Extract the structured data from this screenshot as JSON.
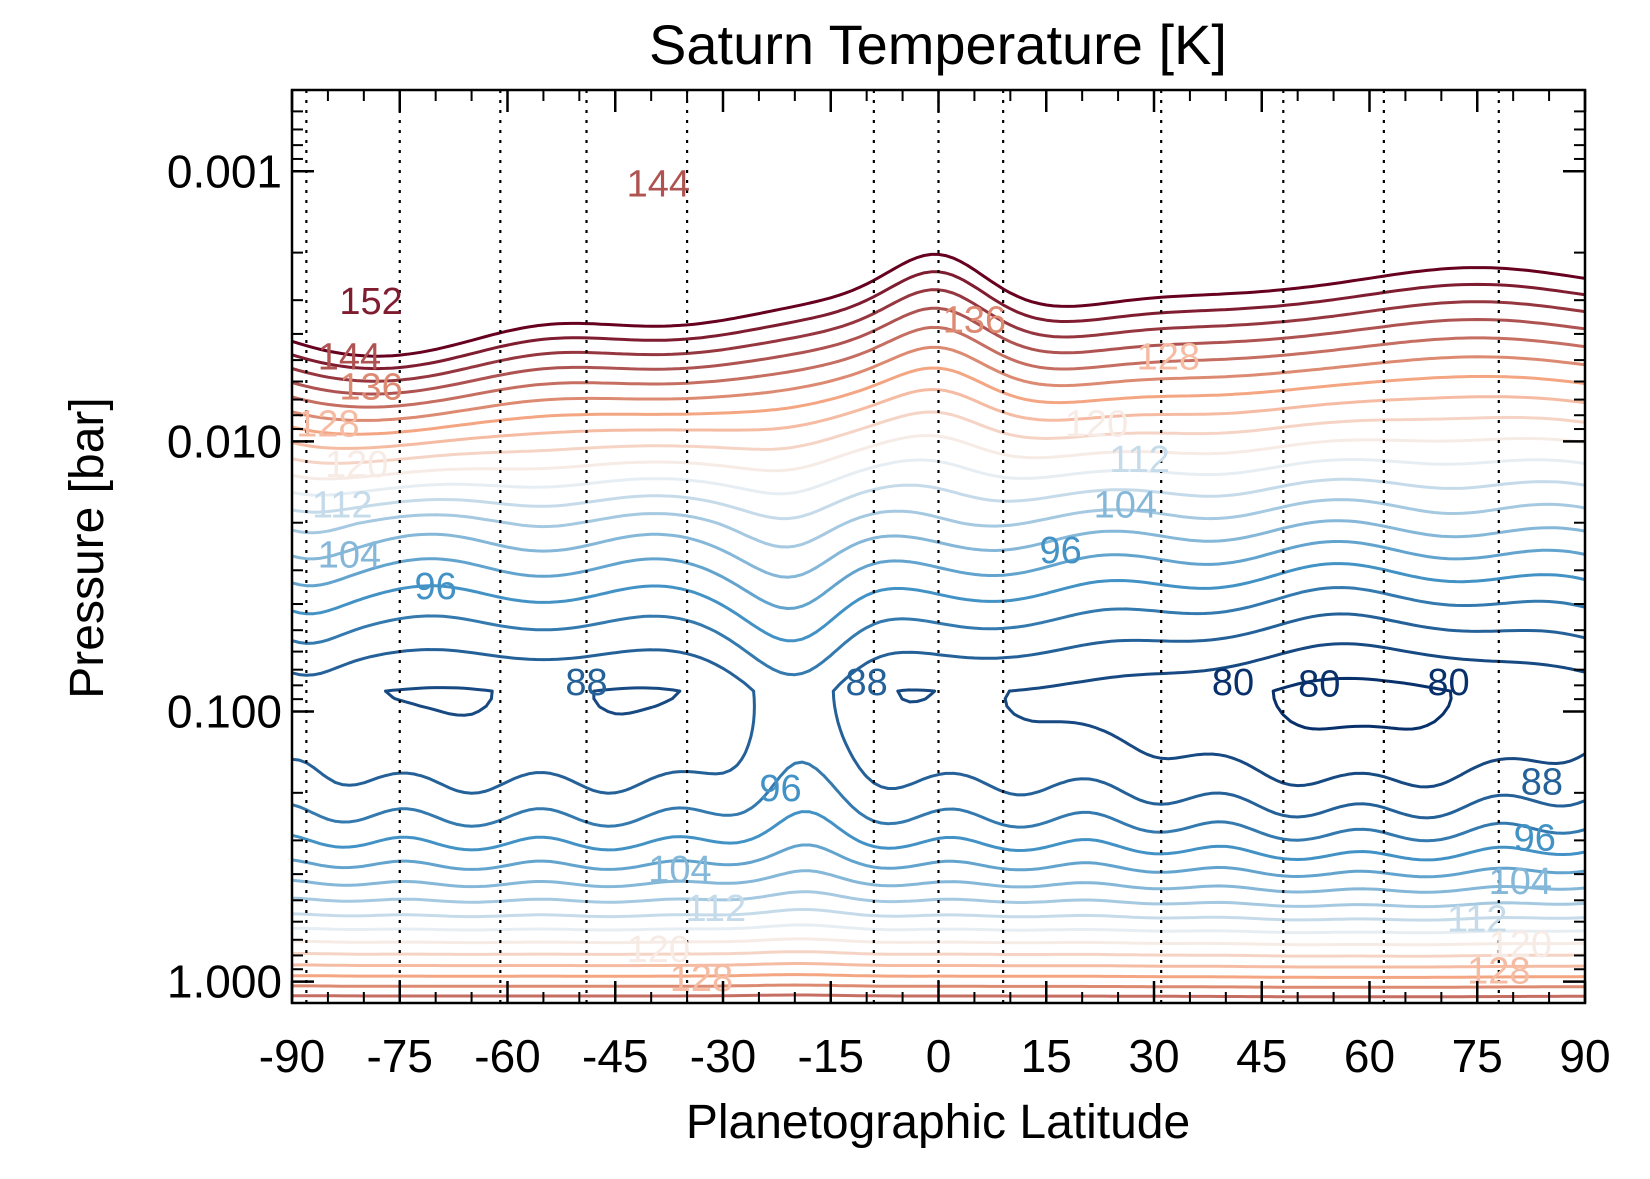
{
  "chart_data": {
    "type": "contour",
    "title": "Saturn Temperature [K]",
    "xlabel": "Planetographic Latitude",
    "ylabel": "Pressure [bar]",
    "xlim": [
      -90,
      90
    ],
    "ylim": [
      1.2,
      0.0005
    ],
    "yscale": "log",
    "xticks": [
      -90,
      -75,
      -60,
      -45,
      -30,
      -15,
      0,
      15,
      30,
      45,
      60,
      75,
      90
    ],
    "xtick_labels": [
      "-90",
      "-75",
      "-60",
      "-45",
      "-30",
      "-15",
      "0",
      "15",
      "30",
      "45",
      "60",
      "75",
      "90"
    ],
    "yticks": [
      0.001,
      0.01,
      0.1,
      1.0
    ],
    "ytick_labels": [
      "0.001",
      "0.010",
      "0.100",
      "1.000"
    ],
    "dotted_latitudes": [
      -88,
      -75,
      -61,
      -49,
      -35,
      -9,
      0,
      9,
      31,
      48,
      62,
      78
    ],
    "contour_levels": [
      80,
      84,
      88,
      92,
      96,
      100,
      104,
      108,
      112,
      116,
      120,
      124,
      128,
      132,
      136,
      140,
      144,
      148,
      152,
      156
    ],
    "contour_labels": [
      {
        "text": "152",
        "lat": -79,
        "p": 0.003
      },
      {
        "text": "144",
        "lat": -39,
        "p": 0.0011
      },
      {
        "text": "144",
        "lat": -82,
        "p": 0.0048
      },
      {
        "text": "136",
        "lat": -79,
        "p": 0.0062
      },
      {
        "text": "128",
        "lat": -85,
        "p": 0.0085
      },
      {
        "text": "120",
        "lat": -81,
        "p": 0.012
      },
      {
        "text": "112",
        "lat": -83,
        "p": 0.017
      },
      {
        "text": "104",
        "lat": -82,
        "p": 0.026
      },
      {
        "text": "96",
        "lat": -70,
        "p": 0.034
      },
      {
        "text": "88",
        "lat": -49,
        "p": 0.077
      },
      {
        "text": "88",
        "lat": -10,
        "p": 0.077
      },
      {
        "text": "136",
        "lat": 5,
        "p": 0.0035
      },
      {
        "text": "128",
        "lat": 32,
        "p": 0.0048
      },
      {
        "text": "120",
        "lat": 22,
        "p": 0.0085
      },
      {
        "text": "112",
        "lat": 28,
        "p": 0.0115
      },
      {
        "text": "104",
        "lat": 26,
        "p": 0.017
      },
      {
        "text": "96",
        "lat": 17,
        "p": 0.025
      },
      {
        "text": "80",
        "lat": 41,
        "p": 0.077
      },
      {
        "text": "80",
        "lat": 53,
        "p": 0.078
      },
      {
        "text": "80",
        "lat": 71,
        "p": 0.077
      },
      {
        "text": "96",
        "lat": -22,
        "p": 0.19
      },
      {
        "text": "104",
        "lat": -36,
        "p": 0.38
      },
      {
        "text": "112",
        "lat": -31,
        "p": 0.53
      },
      {
        "text": "120",
        "lat": -39,
        "p": 0.75
      },
      {
        "text": "128",
        "lat": -33,
        "p": 0.96
      },
      {
        "text": "88",
        "lat": 84,
        "p": 0.18
      },
      {
        "text": "96",
        "lat": 83,
        "p": 0.29
      },
      {
        "text": "104",
        "lat": 81,
        "p": 0.42
      },
      {
        "text": "112",
        "lat": 75,
        "p": 0.58
      },
      {
        "text": "120",
        "lat": 81,
        "p": 0.72
      },
      {
        "text": "128",
        "lat": 78,
        "p": 0.9
      }
    ],
    "colors": {
      "cold": "#08306b",
      "mid_cold": "#4292c6",
      "neutral": "#f7f7f7",
      "mid_warm": "#f4a582",
      "warm": "#67001f"
    }
  }
}
